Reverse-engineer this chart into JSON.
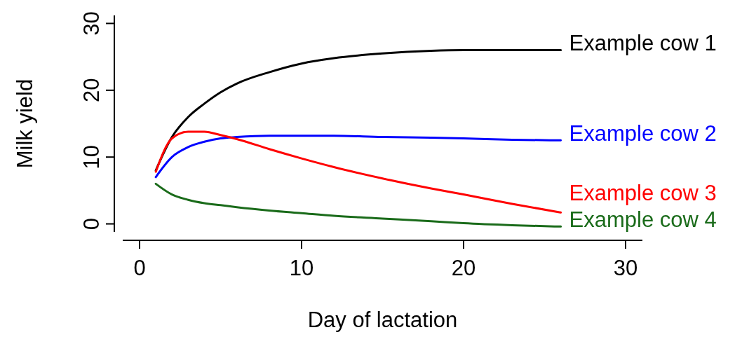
{
  "chart_data": {
    "type": "line",
    "xlabel": "Day of lactation",
    "ylabel": "Milk yield",
    "xlim": [
      -1.04,
      31.04
    ],
    "ylim": [
      -1.2,
      31.2
    ],
    "xticks": [
      0,
      10,
      20,
      30
    ],
    "yticks": [
      0,
      10,
      20,
      30
    ],
    "x": [
      1,
      2,
      3,
      4,
      5,
      6,
      8,
      10,
      12,
      15,
      18,
      20,
      23,
      26
    ],
    "series": [
      {
        "name": "Example cow 1",
        "color": "#000000",
        "values": [
          8,
          13,
          16,
          18,
          19.7,
          21,
          22.7,
          24,
          24.8,
          25.5,
          25.9,
          26,
          26,
          26
        ]
      },
      {
        "name": "Example cow 2",
        "color": "#0000ff",
        "values": [
          7,
          10,
          11.5,
          12.3,
          12.8,
          13,
          13.2,
          13.2,
          13.2,
          13,
          12.9,
          12.8,
          12.6,
          12.5
        ]
      },
      {
        "name": "Example cow 3",
        "color": "#ff0000",
        "values": [
          7.8,
          12.8,
          13.8,
          13.8,
          13.3,
          12.7,
          11.2,
          9.8,
          8.5,
          6.8,
          5.3,
          4.4,
          3,
          1.7
        ]
      },
      {
        "name": "Example cow 4",
        "color": "#1a6b1a",
        "values": [
          6,
          4.4,
          3.6,
          3.1,
          2.8,
          2.5,
          2,
          1.6,
          1.2,
          0.8,
          0.4,
          0.1,
          -0.2,
          -0.4
        ]
      }
    ]
  }
}
